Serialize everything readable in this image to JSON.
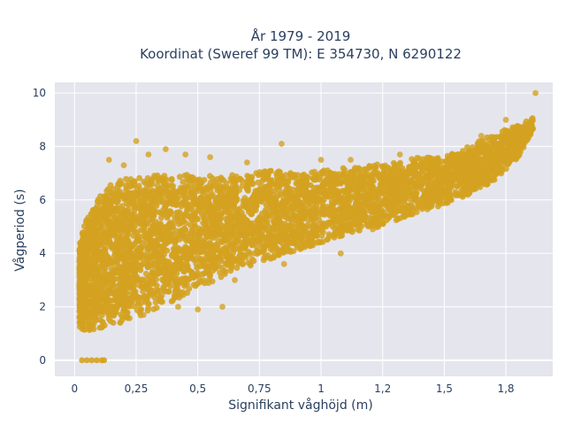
{
  "chart_data": {
    "type": "scatter",
    "title_lines": [
      "År 1979 - 2019",
      "Koordinat (Sweref 99 TM): E 354730, N 6290122"
    ],
    "xlabel": "Signifikant våghöjd (m)",
    "ylabel": "Vågperiod (s)",
    "xlim": [
      -0.08,
      1.94
    ],
    "ylim": [
      -0.6,
      10.4
    ],
    "x_ticks": [
      0,
      0.25,
      0.5,
      0.75,
      1,
      1.25,
      1.5,
      1.75
    ],
    "x_tick_labels": [
      "0",
      "0,25",
      "0,5",
      "0,75",
      "1",
      "1,2",
      "1,5",
      "1,8"
    ],
    "y_ticks": [
      0,
      2,
      4,
      6,
      8,
      10
    ],
    "y_tick_labels": [
      "0",
      "2",
      "4",
      "6",
      "8",
      "10"
    ],
    "grid": true,
    "legend": "none",
    "marker_color": "#d4a220",
    "plot_background": "#e5e5ee",
    "density_summary": {
      "comment_free_series": true,
      "upper_envelope_points": [
        [
          0.02,
          4.5
        ],
        [
          0.05,
          5.3
        ],
        [
          0.1,
          6.2
        ],
        [
          0.15,
          6.6
        ],
        [
          0.2,
          6.8
        ],
        [
          0.3,
          6.9
        ],
        [
          0.4,
          7.0
        ],
        [
          0.5,
          6.9
        ],
        [
          0.6,
          6.9
        ],
        [
          0.7,
          7.0
        ],
        [
          0.8,
          7.1
        ],
        [
          0.9,
          7.0
        ],
        [
          1.0,
          7.1
        ],
        [
          1.1,
          7.2
        ],
        [
          1.2,
          7.3
        ],
        [
          1.3,
          7.4
        ],
        [
          1.4,
          7.6
        ],
        [
          1.5,
          7.6
        ],
        [
          1.6,
          8.0
        ],
        [
          1.7,
          8.5
        ],
        [
          1.8,
          8.8
        ],
        [
          1.86,
          9.1
        ]
      ],
      "lower_envelope_points": [
        [
          0.02,
          1.2
        ],
        [
          0.05,
          1.1
        ],
        [
          0.1,
          1.2
        ],
        [
          0.2,
          1.4
        ],
        [
          0.3,
          1.8
        ],
        [
          0.4,
          2.2
        ],
        [
          0.5,
          2.7
        ],
        [
          0.6,
          3.1
        ],
        [
          0.7,
          3.5
        ],
        [
          0.8,
          3.8
        ],
        [
          0.9,
          4.1
        ],
        [
          1.0,
          4.4
        ],
        [
          1.1,
          4.7
        ],
        [
          1.2,
          4.9
        ],
        [
          1.3,
          5.2
        ],
        [
          1.4,
          5.5
        ],
        [
          1.5,
          5.8
        ],
        [
          1.6,
          6.2
        ],
        [
          1.7,
          6.7
        ],
        [
          1.8,
          7.6
        ],
        [
          1.86,
          8.6
        ]
      ],
      "outliers": [
        [
          0.25,
          8.2
        ],
        [
          0.84,
          8.1
        ],
        [
          0.37,
          7.9
        ],
        [
          0.3,
          7.7
        ],
        [
          1.87,
          10.0
        ],
        [
          0.14,
          7.5
        ],
        [
          0.2,
          7.3
        ],
        [
          0.45,
          7.7
        ],
        [
          1.32,
          7.7
        ],
        [
          0.55,
          7.6
        ],
        [
          1.12,
          7.5
        ],
        [
          1.26,
          7.2
        ],
        [
          0.7,
          7.4
        ],
        [
          1.0,
          7.5
        ],
        [
          1.65,
          8.4
        ],
        [
          0.6,
          2.0
        ],
        [
          0.5,
          1.9
        ],
        [
          0.42,
          2.0
        ],
        [
          0.65,
          3.0
        ],
        [
          1.08,
          4.0
        ],
        [
          1.21,
          4.9
        ],
        [
          0.95,
          4.6
        ],
        [
          0.28,
          1.7
        ],
        [
          0.85,
          3.6
        ],
        [
          1.75,
          9.0
        ]
      ],
      "zero_period_points": [
        [
          0.03,
          0
        ],
        [
          0.05,
          0
        ],
        [
          0.07,
          0
        ],
        [
          0.09,
          0
        ],
        [
          0.11,
          0
        ],
        [
          0.12,
          0
        ]
      ]
    }
  }
}
